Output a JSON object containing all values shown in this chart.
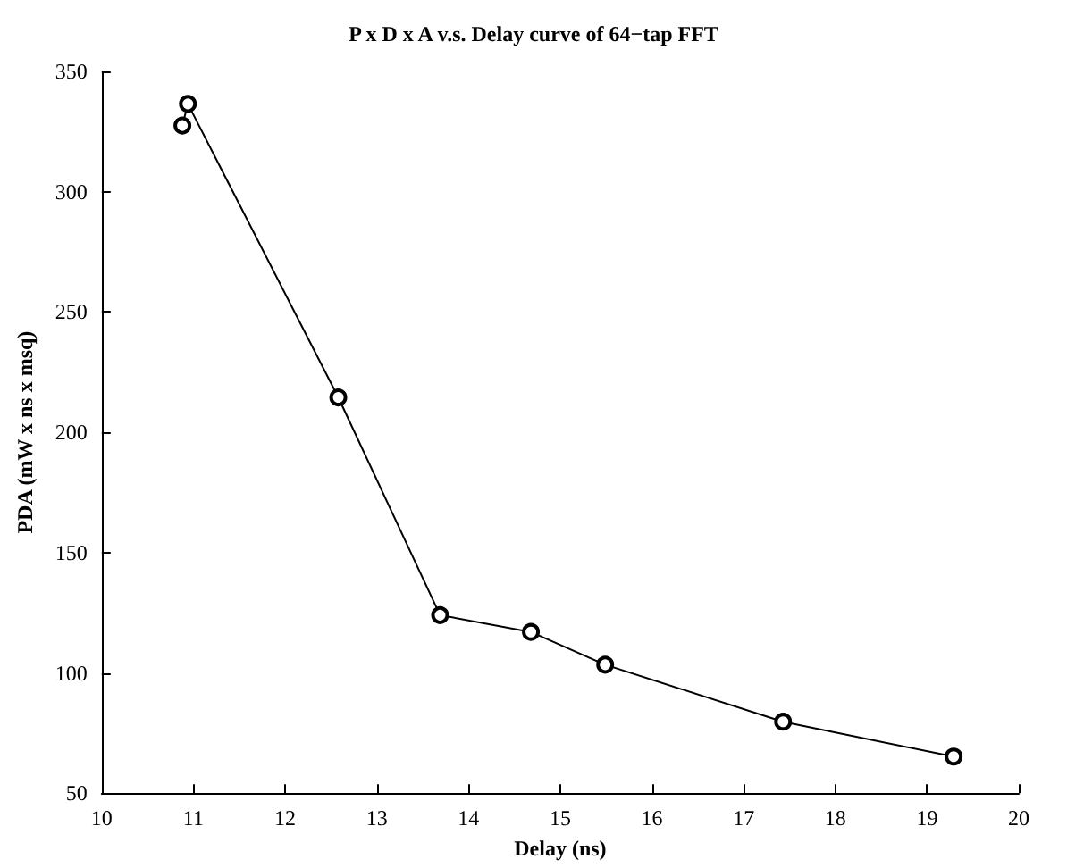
{
  "chart_data": {
    "type": "line",
    "title": "P x D x A v.s. Delay curve of 64−tap FFT",
    "xlabel": "Delay (ns)",
    "ylabel": "PDA (mW x ns x msq)",
    "x": [
      10.88,
      10.94,
      12.58,
      13.69,
      14.68,
      15.49,
      17.43,
      19.29
    ],
    "series": [
      {
        "color": "#000000",
        "values": [
          327.5,
          336.5,
          214.5,
          124,
          117,
          103.4,
          79.7,
          65.2
        ]
      }
    ],
    "xlim": [
      10,
      20
    ],
    "xticks": [
      10,
      11,
      12,
      13,
      14,
      15,
      16,
      17,
      18,
      19,
      20
    ],
    "ylim": [
      50,
      350
    ],
    "yticks": [
      50,
      100,
      150,
      200,
      250,
      300,
      350
    ],
    "grid": false,
    "marker": "circle",
    "line_style": "solid"
  }
}
